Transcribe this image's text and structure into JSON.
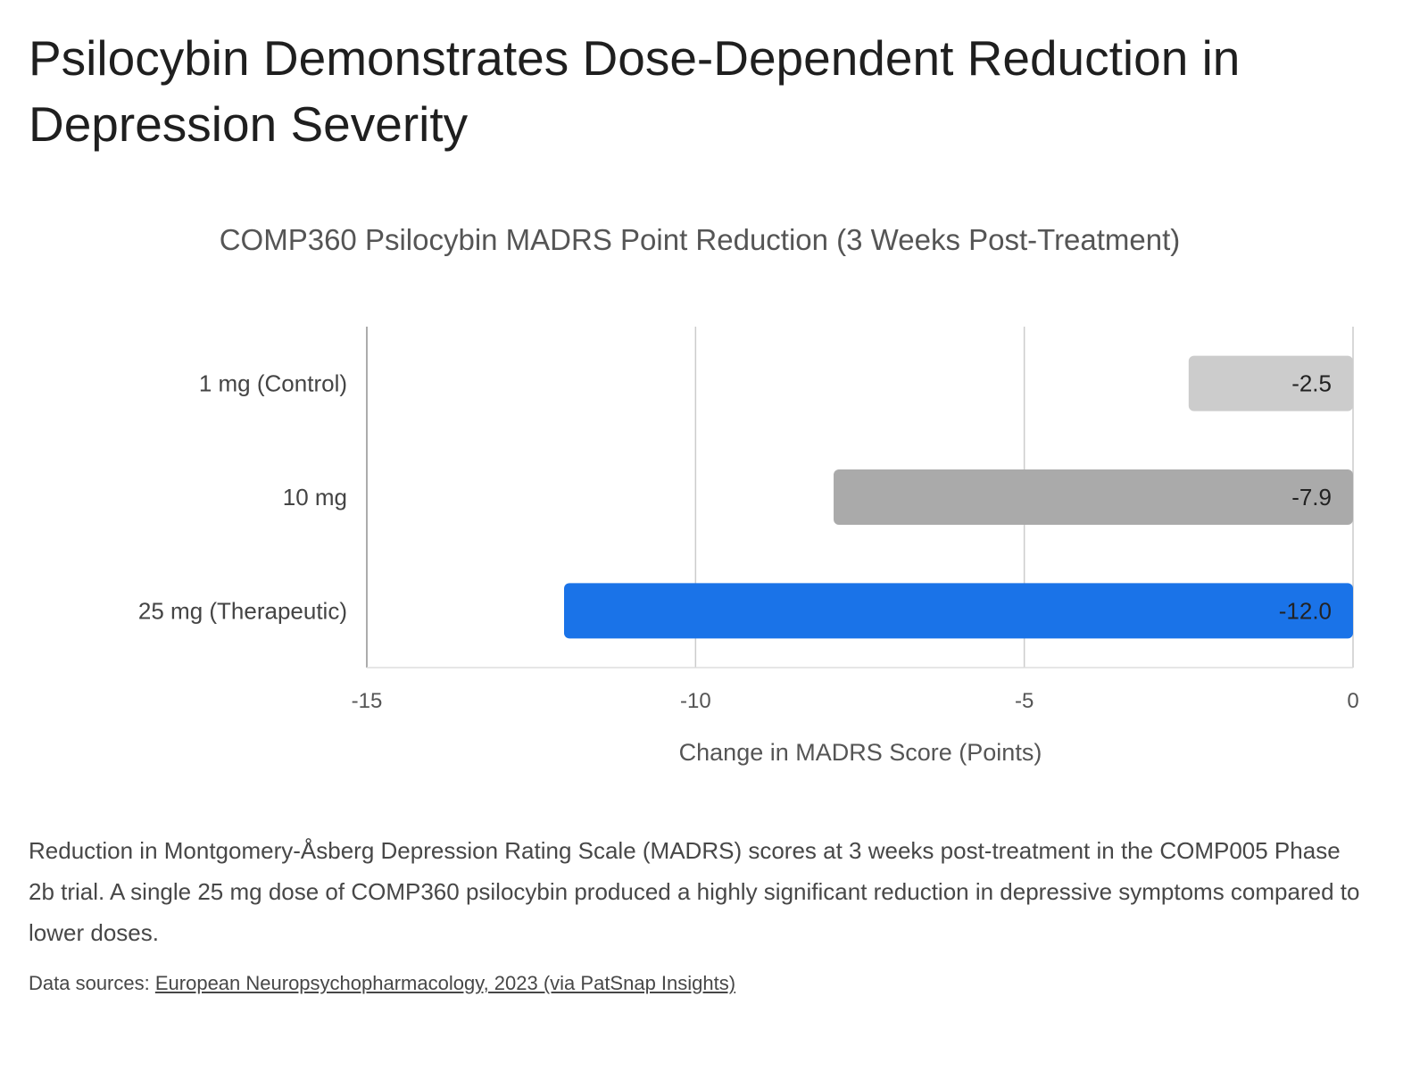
{
  "page": {
    "headline": "Psilocybin Demonstrates Dose-Dependent Reduction in Depression Severity",
    "caption": "Reduction in Montgomery-Åsberg Depression Rating Scale (MADRS) scores at 3 weeks post-treatment in the COMP005 Phase 2b trial. A single 25 mg dose of COMP360 psilocybin produced a highly significant reduction in depressive symptoms compared to lower doses.",
    "sources_label": "Data sources:",
    "sources_link": "European Neuropsychopharmacology, 2023 (via PatSnap Insights)"
  },
  "chart_data": {
    "type": "bar",
    "orientation": "horizontal",
    "title": "COMP360 Psilocybin MADRS Point Reduction (3 Weeks Post-Treatment)",
    "xlabel": "Change in MADRS Score (Points)",
    "ylabel": "",
    "categories": [
      "1 mg (Control)",
      "10 mg",
      "25 mg (Therapeutic)"
    ],
    "values": [
      -2.5,
      -7.9,
      -12.0
    ],
    "data_labels": [
      "-2.5",
      "-7.9",
      "-12.0"
    ],
    "bar_colors": [
      "#cccccc",
      "#aaaaaa",
      "#1a73e8"
    ],
    "xlim": [
      -15,
      0
    ],
    "xticks": [
      -15,
      -10,
      -5,
      0
    ],
    "xtick_labels": [
      "-15",
      "-10",
      "-5",
      "0"
    ],
    "grid": true,
    "legend": "none"
  }
}
